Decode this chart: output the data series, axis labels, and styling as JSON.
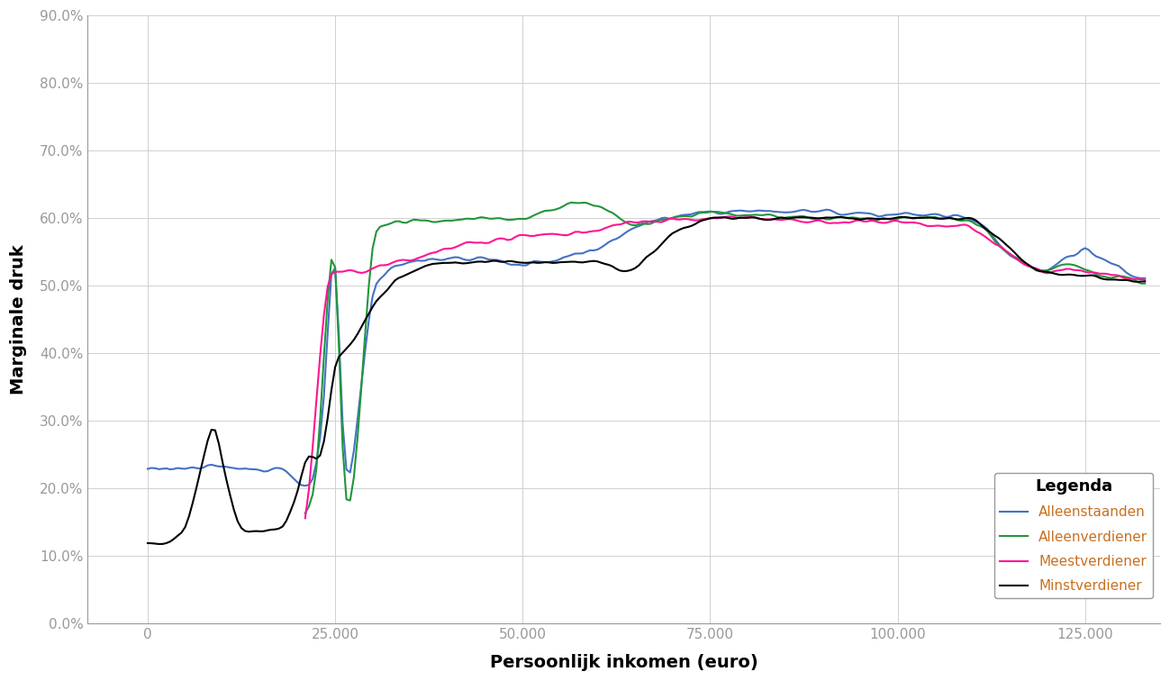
{
  "ylabel": "Marginale druk",
  "xlabel": "Persoonlijk inkomen (euro)",
  "legend_title": "Legenda",
  "legend_entries": [
    "Alleenstaanden",
    "Alleenverdiener",
    "Meestverdiener",
    "Minstverdiener"
  ],
  "colors": [
    "#4472C4",
    "#21963B",
    "#FF1493",
    "#000000"
  ],
  "linewidths": [
    1.5,
    1.5,
    1.5,
    1.5
  ],
  "ylim": [
    0.0,
    0.9
  ],
  "xlim": [
    -8000,
    135000
  ],
  "yticks": [
    0.0,
    0.1,
    0.2,
    0.3,
    0.4,
    0.5,
    0.6,
    0.7,
    0.8,
    0.9
  ],
  "yticklabels": [
    "0.0%",
    "10.0%",
    "20.0%",
    "30.0%",
    "40.0%",
    "50.0%",
    "60.0%",
    "70.0%",
    "80.0%",
    "90.0%"
  ],
  "xticks": [
    0,
    25000,
    50000,
    75000,
    100000,
    125000
  ],
  "xticklabels": [
    "0",
    "25.000",
    "50.000",
    "75.000",
    "100.000",
    "125.000"
  ],
  "background_color": "#FFFFFF",
  "grid_color": "#D0D0D0",
  "font_color": "#C87020",
  "tick_label_fontsize": 11,
  "axis_label_fontsize": 14
}
